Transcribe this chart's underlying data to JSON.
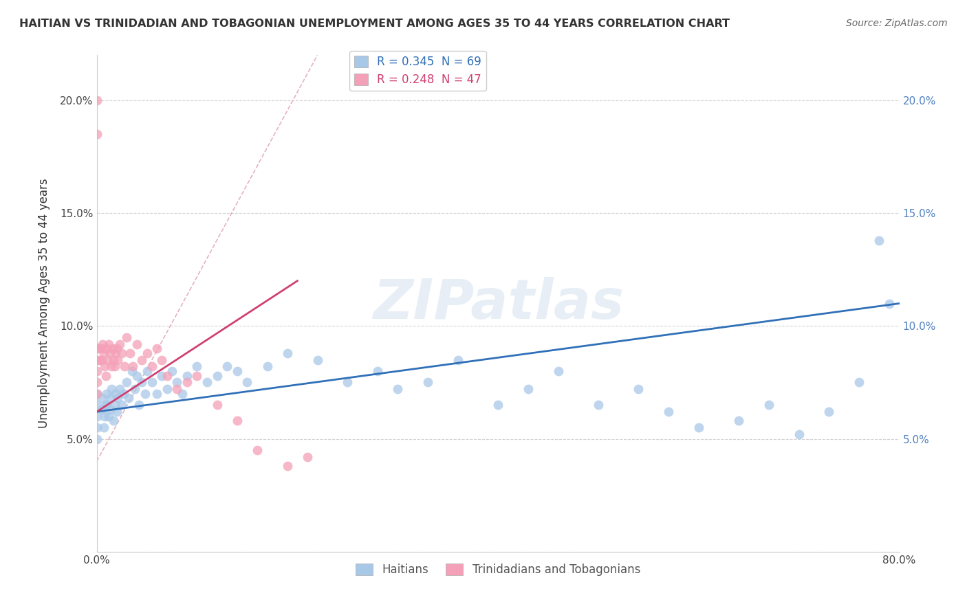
{
  "title": "HAITIAN VS TRINIDADIAN AND TOBAGONIAN UNEMPLOYMENT AMONG AGES 35 TO 44 YEARS CORRELATION CHART",
  "source": "Source: ZipAtlas.com",
  "ylabel": "Unemployment Among Ages 35 to 44 years",
  "legend_r1": "R = 0.345  N = 69",
  "legend_r2": "R = 0.248  N = 47",
  "watermark": "ZIPatlas",
  "blue_color": "#a8c8e8",
  "pink_color": "#f4a0b8",
  "blue_line_color": "#3070b8",
  "pink_line_color": "#d04070",
  "diag_color": "#e8b0b8",
  "background_color": "#ffffff",
  "grid_color": "#c8c8c8",
  "blue_scatter_x": [
    0.0,
    0.0,
    0.0,
    0.0,
    0.0,
    0.005,
    0.005,
    0.007,
    0.008,
    0.009,
    0.01,
    0.01,
    0.012,
    0.013,
    0.014,
    0.015,
    0.017,
    0.018,
    0.019,
    0.02,
    0.021,
    0.023,
    0.025,
    0.027,
    0.03,
    0.032,
    0.035,
    0.038,
    0.04,
    0.042,
    0.045,
    0.048,
    0.05,
    0.055,
    0.06,
    0.065,
    0.07,
    0.075,
    0.08,
    0.085,
    0.09,
    0.1,
    0.11,
    0.12,
    0.13,
    0.14,
    0.15,
    0.17,
    0.19,
    0.22,
    0.25,
    0.28,
    0.3,
    0.33,
    0.36,
    0.4,
    0.43,
    0.46,
    0.5,
    0.54,
    0.57,
    0.6,
    0.64,
    0.67,
    0.7,
    0.73,
    0.76,
    0.78,
    0.79
  ],
  "blue_scatter_y": [
    0.07,
    0.065,
    0.06,
    0.055,
    0.05,
    0.068,
    0.063,
    0.055,
    0.06,
    0.065,
    0.07,
    0.065,
    0.06,
    0.068,
    0.063,
    0.072,
    0.058,
    0.065,
    0.07,
    0.062,
    0.068,
    0.072,
    0.065,
    0.07,
    0.075,
    0.068,
    0.08,
    0.072,
    0.078,
    0.065,
    0.075,
    0.07,
    0.08,
    0.075,
    0.07,
    0.078,
    0.072,
    0.08,
    0.075,
    0.07,
    0.078,
    0.082,
    0.075,
    0.078,
    0.082,
    0.08,
    0.075,
    0.082,
    0.088,
    0.085,
    0.075,
    0.08,
    0.072,
    0.075,
    0.085,
    0.065,
    0.072,
    0.08,
    0.065,
    0.072,
    0.062,
    0.055,
    0.058,
    0.065,
    0.052,
    0.062,
    0.075,
    0.138,
    0.11
  ],
  "pink_scatter_x": [
    0.0,
    0.0,
    0.0,
    0.0,
    0.0,
    0.0,
    0.0,
    0.002,
    0.003,
    0.005,
    0.005,
    0.006,
    0.007,
    0.008,
    0.009,
    0.01,
    0.011,
    0.012,
    0.013,
    0.015,
    0.016,
    0.017,
    0.018,
    0.019,
    0.02,
    0.021,
    0.023,
    0.025,
    0.028,
    0.03,
    0.033,
    0.036,
    0.04,
    0.045,
    0.05,
    0.055,
    0.06,
    0.065,
    0.07,
    0.08,
    0.09,
    0.1,
    0.12,
    0.14,
    0.16,
    0.19,
    0.21
  ],
  "pink_scatter_y": [
    0.2,
    0.185,
    0.09,
    0.085,
    0.08,
    0.075,
    0.07,
    0.09,
    0.085,
    0.09,
    0.085,
    0.092,
    0.088,
    0.082,
    0.078,
    0.09,
    0.085,
    0.092,
    0.088,
    0.082,
    0.09,
    0.085,
    0.082,
    0.088,
    0.09,
    0.085,
    0.092,
    0.088,
    0.082,
    0.095,
    0.088,
    0.082,
    0.092,
    0.085,
    0.088,
    0.082,
    0.09,
    0.085,
    0.078,
    0.072,
    0.075,
    0.078,
    0.065,
    0.058,
    0.045,
    0.038,
    0.042
  ]
}
